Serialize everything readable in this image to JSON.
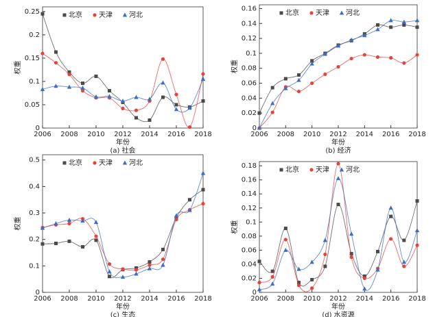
{
  "chart_data": [
    {
      "type": "line",
      "caption": "(a) 社会",
      "xlabel": "年份",
      "ylabel": "权重",
      "legend": "top",
      "x": [
        2006,
        2007,
        2008,
        2009,
        2010,
        2011,
        2012,
        2013,
        2014,
        2015,
        2016,
        2017,
        2018
      ],
      "xlim": [
        2006,
        2018
      ],
      "xticks": [
        2006,
        2008,
        2010,
        2012,
        2014,
        2016,
        2018
      ],
      "ylim": [
        0,
        0.26
      ],
      "yticks": [
        0,
        0.05,
        0.1,
        0.15,
        0.2,
        0.25
      ],
      "series": [
        {
          "name": "北京",
          "color": "#4a4a4a",
          "marker": "square",
          "values": [
            0.245,
            0.163,
            0.12,
            0.096,
            0.111,
            0.08,
            0.055,
            0.022,
            0.017,
            0.066,
            0.05,
            0.045,
            0.058
          ]
        },
        {
          "name": "天津",
          "color": "#e8423a",
          "marker": "circle",
          "values": [
            0.16,
            0.14,
            0.115,
            0.08,
            0.065,
            0.065,
            0.042,
            0.038,
            0.058,
            0.148,
            0.072,
            0.002,
            0.116
          ]
        },
        {
          "name": "河北",
          "color": "#3a6fc4",
          "marker": "triangle",
          "values": [
            0.083,
            0.09,
            0.088,
            0.086,
            0.067,
            0.068,
            0.058,
            0.066,
            0.062,
            0.097,
            0.04,
            0.043,
            0.105
          ]
        }
      ]
    },
    {
      "type": "line",
      "caption": "(b) 经济",
      "xlabel": "年份",
      "ylabel": "权重",
      "legend": "top",
      "x": [
        2006,
        2007,
        2008,
        2009,
        2010,
        2011,
        2012,
        2013,
        2014,
        2015,
        2016,
        2017,
        2018
      ],
      "xlim": [
        2006,
        2018
      ],
      "xticks": [
        2006,
        2008,
        2010,
        2012,
        2014,
        2016,
        2018
      ],
      "ylim": [
        0,
        0.165
      ],
      "yticks": [
        0,
        0.02,
        0.04,
        0.06,
        0.08,
        0.1,
        0.12,
        0.14,
        0.16
      ],
      "series": [
        {
          "name": "北京",
          "color": "#4a4a4a",
          "marker": "square",
          "values": [
            0.02,
            0.054,
            0.066,
            0.071,
            0.09,
            0.1,
            0.111,
            0.117,
            0.126,
            0.138,
            0.135,
            0.138,
            0.135
          ]
        },
        {
          "name": "天津",
          "color": "#e8423a",
          "marker": "circle",
          "values": [
            0,
            0.021,
            0.055,
            0.049,
            0.06,
            0.072,
            0.082,
            0.093,
            0.098,
            0.095,
            0.094,
            0.087,
            0.098
          ]
        },
        {
          "name": "河北",
          "color": "#3a6fc4",
          "marker": "triangle",
          "values": [
            0,
            0.033,
            0.053,
            0.064,
            0.086,
            0.099,
            0.11,
            0.118,
            0.124,
            0.132,
            0.144,
            0.142,
            0.144
          ]
        }
      ]
    },
    {
      "type": "line",
      "caption": "(c) 生态",
      "xlabel": "年份",
      "ylabel": "权重",
      "legend": "top",
      "x": [
        2006,
        2007,
        2008,
        2009,
        2010,
        2011,
        2012,
        2013,
        2014,
        2015,
        2016,
        2017,
        2018
      ],
      "xlim": [
        2006,
        2018
      ],
      "xticks": [
        2006,
        2008,
        2010,
        2012,
        2014,
        2016,
        2018
      ],
      "ylim": [
        0,
        0.52
      ],
      "yticks": [
        0,
        0.1,
        0.2,
        0.3,
        0.4,
        0.5
      ],
      "series": [
        {
          "name": "北京",
          "color": "#4a4a4a",
          "marker": "square",
          "values": [
            0.183,
            0.185,
            0.193,
            0.172,
            0.197,
            0.06,
            0.086,
            0.092,
            0.115,
            0.162,
            0.283,
            0.35,
            0.388
          ]
        },
        {
          "name": "天津",
          "color": "#e8423a",
          "marker": "circle",
          "values": [
            0.245,
            0.255,
            0.26,
            0.278,
            0.212,
            0.107,
            0.088,
            0.085,
            0.103,
            0.125,
            0.275,
            0.312,
            0.335
          ]
        },
        {
          "name": "河北",
          "color": "#3a6fc4",
          "marker": "triangle",
          "values": [
            0.243,
            0.26,
            0.273,
            0.27,
            0.265,
            0.078,
            0.058,
            0.07,
            0.09,
            0.103,
            0.29,
            0.31,
            0.45
          ]
        }
      ]
    },
    {
      "type": "line",
      "caption": "(d) 水资源",
      "xlabel": "年份",
      "ylabel": "权重",
      "legend": "top",
      "x": [
        2006,
        2007,
        2008,
        2009,
        2010,
        2011,
        2012,
        2013,
        2014,
        2015,
        2016,
        2017,
        2018
      ],
      "xlim": [
        2006,
        2018
      ],
      "xticks": [
        2006,
        2008,
        2010,
        2012,
        2014,
        2016,
        2018
      ],
      "ylim": [
        0,
        0.186
      ],
      "yticks": [
        0,
        0.02,
        0.04,
        0.06,
        0.08,
        0.1,
        0.12,
        0.14,
        0.16,
        0.18
      ],
      "series": [
        {
          "name": "北京",
          "color": "#4a4a4a",
          "marker": "square",
          "values": [
            0.044,
            0.03,
            0.091,
            0.014,
            0.018,
            0.037,
            0.125,
            0.055,
            0.023,
            0.058,
            0.108,
            0.074,
            0.13
          ]
        },
        {
          "name": "天津",
          "color": "#e8423a",
          "marker": "circle",
          "values": [
            0.014,
            0.022,
            0.075,
            0.01,
            0.006,
            0.054,
            0.183,
            0.05,
            0.02,
            0.034,
            0.076,
            0.037,
            0.067
          ]
        },
        {
          "name": "河北",
          "color": "#3a6fc4",
          "marker": "triangle",
          "values": [
            0.004,
            0.012,
            0.06,
            0.033,
            0.043,
            0.074,
            0.162,
            0.083,
            0.005,
            0.032,
            0.12,
            0.043,
            0.088
          ]
        }
      ]
    }
  ]
}
